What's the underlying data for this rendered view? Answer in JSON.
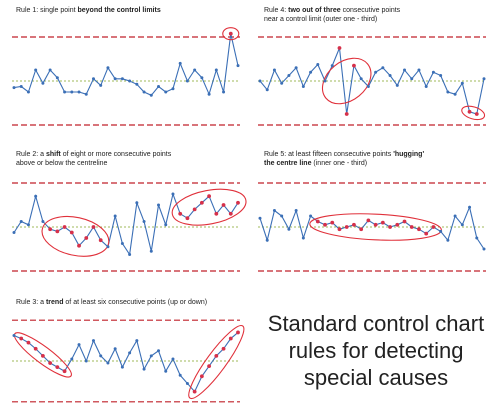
{
  "headline": {
    "line1": "Standard control chart",
    "line2": "rules for detecting",
    "line3": "special causes"
  },
  "colors": {
    "series": "#3b6fb6",
    "highlight_marker": "#d6304a",
    "control_limit": "#c0202a",
    "centreline": "#9fb85a",
    "ring": "#e0303a"
  },
  "chart_data": [
    {
      "type": "line",
      "caption_parts": [
        {
          "text": "Rule 1: single point ",
          "bold": false
        },
        {
          "text": "beyond the control limits",
          "bold": true
        }
      ],
      "ylim": [
        0,
        100
      ],
      "ucl": 90,
      "lcl": 10,
      "centre": 50,
      "x": [
        1,
        2,
        3,
        4,
        5,
        6,
        7,
        8,
        9,
        10,
        11,
        12,
        13,
        14,
        15,
        16,
        17,
        18,
        19,
        20,
        21,
        22,
        23,
        24,
        25,
        26,
        27,
        28,
        29,
        30,
        31,
        32
      ],
      "values": [
        44,
        45,
        40,
        60,
        48,
        60,
        53,
        40,
        40,
        40,
        38,
        52,
        46,
        62,
        52,
        52,
        50,
        47,
        40,
        37,
        45,
        40,
        43,
        66,
        50,
        60,
        53,
        38,
        60,
        40,
        93,
        64
      ],
      "highlight": [
        31
      ],
      "grid": false
    },
    {
      "type": "line",
      "caption_parts": [
        {
          "text": "Rule 2: a ",
          "bold": false
        },
        {
          "text": "shift",
          "bold": true
        },
        {
          "text": " of eight or more consecutive points",
          "bold": false
        },
        {
          "text": "|above or below the centreline",
          "bold": false
        }
      ],
      "ylim": [
        0,
        100
      ],
      "ucl": 90,
      "lcl": 10,
      "centre": 50,
      "x": [
        1,
        2,
        3,
        4,
        5,
        6,
        7,
        8,
        9,
        10,
        11,
        12,
        13,
        14,
        15,
        16,
        17,
        18,
        19,
        20,
        21,
        22,
        23,
        24,
        25,
        26,
        27,
        28,
        29,
        30,
        31,
        32
      ],
      "values": [
        45,
        55,
        52,
        78,
        55,
        48,
        46,
        50,
        45,
        33,
        40,
        50,
        38,
        32,
        60,
        35,
        25,
        72,
        55,
        28,
        70,
        52,
        80,
        62,
        58,
        66,
        72,
        78,
        62,
        70,
        62,
        72
      ],
      "highlight": [
        6,
        7,
        8,
        9,
        10,
        11,
        12,
        13,
        24,
        25,
        26,
        27,
        28,
        29,
        30,
        31,
        32
      ],
      "grid": false
    },
    {
      "type": "line",
      "caption_parts": [
        {
          "text": "Rule 3: a ",
          "bold": false
        },
        {
          "text": "trend",
          "bold": true
        },
        {
          "text": " of at least six consecutive points (up or down)",
          "bold": false
        }
      ],
      "ylim": [
        0,
        100
      ],
      "ucl": 90,
      "lcl": 10,
      "centre": 50,
      "x": [
        1,
        2,
        3,
        4,
        5,
        6,
        7,
        8,
        9,
        10,
        11,
        12,
        13,
        14,
        15,
        16,
        17,
        18,
        19,
        20,
        21,
        22,
        23,
        24,
        25,
        26,
        27,
        28,
        29,
        30,
        31,
        32
      ],
      "values": [
        75,
        72,
        68,
        62,
        55,
        48,
        44,
        40,
        52,
        66,
        50,
        70,
        55,
        48,
        62,
        44,
        58,
        70,
        42,
        55,
        60,
        40,
        52,
        36,
        28,
        20,
        35,
        45,
        55,
        62,
        72,
        78
      ],
      "highlight": [
        2,
        3,
        4,
        5,
        6,
        7,
        8,
        26,
        27,
        28,
        29,
        30,
        31,
        32
      ],
      "grid": false
    },
    {
      "type": "line",
      "caption_parts": [
        {
          "text": "Rule 4: ",
          "bold": false
        },
        {
          "text": "two out of three",
          "bold": true
        },
        {
          "text": " consecutive points",
          "bold": false
        },
        {
          "text": "|near a control limit (outer one - third)",
          "bold": false
        }
      ],
      "ylim": [
        0,
        100
      ],
      "ucl": 90,
      "lcl": 10,
      "centre": 50,
      "x": [
        1,
        2,
        3,
        4,
        5,
        6,
        7,
        8,
        9,
        10,
        11,
        12,
        13,
        14,
        15,
        16,
        17,
        18,
        19,
        20,
        21,
        22,
        23,
        24,
        25,
        26,
        27,
        28,
        29,
        30,
        31,
        32
      ],
      "values": [
        50,
        42,
        60,
        48,
        55,
        62,
        45,
        58,
        65,
        50,
        64,
        80,
        20,
        64,
        52,
        45,
        58,
        62,
        55,
        46,
        60,
        52,
        60,
        45,
        58,
        55,
        40,
        38,
        48,
        22,
        20,
        52
      ],
      "highlight": [
        12,
        13,
        14,
        30,
        31
      ],
      "grid": false
    },
    {
      "type": "line",
      "caption_parts": [
        {
          "text": "Rule 5:  at least fifteen consecutive points ",
          "bold": false
        },
        {
          "text": "'hugging'",
          "bold": true
        },
        {
          "text": "|",
          "bold": false
        },
        {
          "text": "the centre line",
          "bold": true
        },
        {
          "text": " (inner one - third)",
          "bold": false
        }
      ],
      "ylim": [
        0,
        100
      ],
      "ucl": 90,
      "lcl": 10,
      "centre": 50,
      "x": [
        1,
        2,
        3,
        4,
        5,
        6,
        7,
        8,
        9,
        10,
        11,
        12,
        13,
        14,
        15,
        16,
        17,
        18,
        19,
        20,
        21,
        22,
        23,
        24,
        25,
        26,
        27,
        28,
        29,
        30,
        31,
        32
      ],
      "values": [
        58,
        38,
        65,
        60,
        48,
        65,
        40,
        60,
        55,
        52,
        54,
        48,
        50,
        52,
        48,
        56,
        52,
        54,
        50,
        52,
        55,
        50,
        48,
        44,
        50,
        46,
        38,
        60,
        52,
        68,
        40,
        30
      ],
      "highlight": [
        9,
        10,
        11,
        12,
        13,
        14,
        15,
        16,
        17,
        18,
        19,
        20,
        21,
        22,
        23,
        24,
        25
      ],
      "grid": false
    }
  ]
}
